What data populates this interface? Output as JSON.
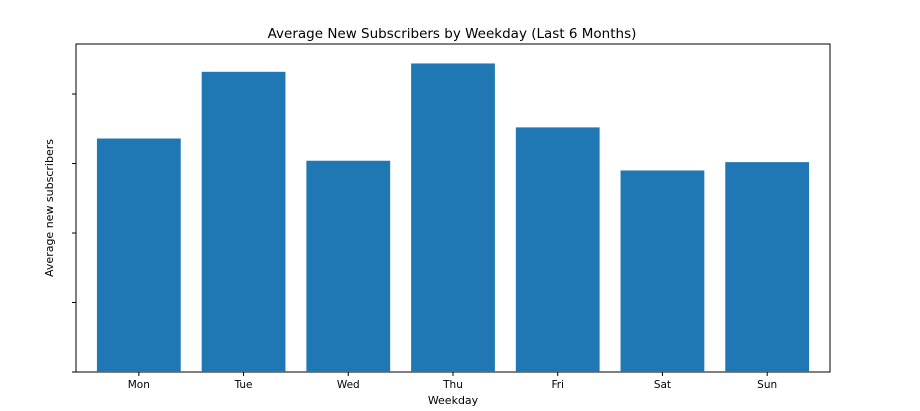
{
  "chart_data": {
    "type": "bar",
    "title": "Average New Subscribers by Weekday (Last 6 Months)",
    "xlabel": "Weekday",
    "ylabel": "Average new subscribers",
    "categories": [
      "Mon",
      "Tue",
      "Wed",
      "Thu",
      "Fri",
      "Sat",
      "Sun"
    ],
    "values": [
      168,
      216,
      152,
      222,
      176,
      145,
      151
    ],
    "ylim": [
      0,
      236
    ],
    "bar_color": "#1f77b4",
    "grid": false,
    "legend": "none"
  }
}
